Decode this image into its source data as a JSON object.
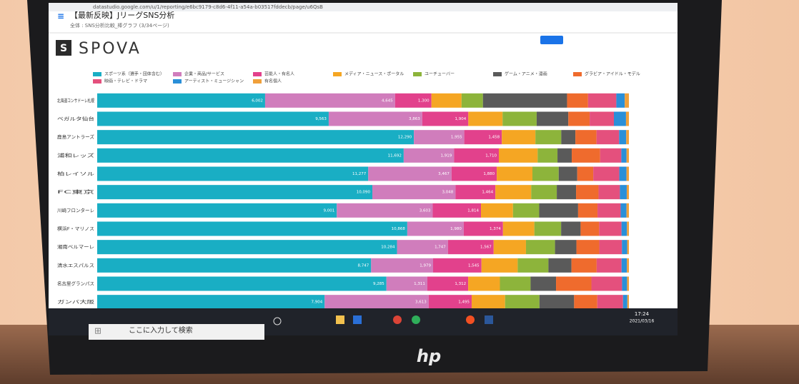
{
  "browser": {
    "url": "datastudio.google.com/u/1/reporting/e6bc9179-c8d6-4f11-a54a-b03517fddecb/page/u6QsB",
    "title": "【最新反映】JリーグSNS分析",
    "breadcrumb": "全体 : SNS分析比較_棒グラフ (3/34ページ)"
  },
  "report": {
    "logo_letter": "S",
    "logo_text": "SPOVA"
  },
  "taskbar": {
    "search": "ここに入力して検索",
    "time": "17:24",
    "date": "2021/03/16"
  },
  "brand": "hp",
  "chart_data": {
    "type": "stacked_bar_100",
    "categories": [
      "北海道コンサドーレ札幌",
      "ベガルタ仙台",
      "鹿島アントラーズ",
      "浦和レッズ",
      "柏レイソル",
      "FC東京",
      "川崎フロンターレ",
      "横浜F・マリノス",
      "湘南ベルマーレ",
      "清水エスパルス",
      "名古屋グランパス",
      "ガンバ大阪"
    ],
    "series": [
      {
        "name": "スポーツ系（選手・団体含む）",
        "color": "#19aec4",
        "values": [
          6002,
          9563,
          12290,
          11692,
          11277,
          10090,
          9001,
          10868,
          10284,
          8747,
          9285,
          7904
        ],
        "value_labels": [
          "6,002",
          "9,563",
          "12,290",
          "11,692",
          "11,277",
          "10,090",
          "9,001",
          "10,868",
          "10,284",
          "8,747",
          "9,285",
          "7,904"
        ]
      },
      {
        "name": "企業・商品/サービス",
        "color": "#d07dbc",
        "values": [
          4645,
          3863,
          1955,
          1919,
          3467,
          3048,
          3603,
          1980,
          1747,
          1979,
          1311,
          3613
        ],
        "value_labels": [
          "4,645",
          "3,863",
          "1,955",
          "1,919",
          "3,467",
          "3,048",
          "3,603",
          "1,980",
          "1,747",
          "1,979",
          "1,311",
          "3,613"
        ]
      },
      {
        "name": "芸能人・有名人",
        "color": "#e2418c",
        "values": [
          1300,
          1904,
          1458,
          1710,
          1880,
          1464,
          1814,
          1374,
          1567,
          1545,
          1312,
          1495
        ],
        "value_labels": [
          "1,300",
          "1,904",
          "1,458",
          "1,710",
          "1,880",
          "1,464",
          "1,814",
          "1,374",
          "1,567",
          "1,545",
          "1,312",
          "1,495"
        ]
      },
      {
        "name": "メディア・ニュース・ポータル",
        "color": "#f5a623",
        "values": [
          1076,
          1415,
          1303,
          1480,
          1484,
          1314,
          1202,
          1100,
          1108,
          1156,
          1018,
          1161
        ]
      },
      {
        "name": "ユーチューバー",
        "color": "#8db43b",
        "values": [
          765,
          1408,
          1003,
          757,
          1093,
          938,
          984,
          938,
          996,
          982,
          985,
          1194
        ]
      },
      {
        "name": "ゲーム・アニメ・漫画",
        "color": "#5a5a5a",
        "values": [
          3007,
          1307,
          549,
          545,
          772,
          707,
          1462,
          683,
          735,
          736,
          817,
          1205
        ]
      },
      {
        "name": "グラビア・アイドル・モデル",
        "color": "#ef6b2d",
        "values": [
          750,
          882,
          820,
          1080,
          666,
          823,
          729,
          649,
          784,
          804,
          1135,
          805
        ]
      },
      {
        "name": "映画・テレビ・ドラマ",
        "color": "#e4507d",
        "values": [
          1011,
          1001,
          877,
          810,
          1083,
          785,
          870,
          784,
          776,
          795,
          984,
          894
        ]
      },
      {
        "name": "アーティスト・ミュージシャン",
        "color": "#2a8fd8",
        "values": [
          300,
          500,
          276,
          200,
          300,
          250,
          220,
          190,
          180,
          170,
          160,
          150
        ]
      },
      {
        "name": "有名個人",
        "color": "#f0a03a",
        "values": [
          150,
          120,
          104,
          90,
          100,
          80,
          90,
          70,
          60,
          65,
          60,
          55
        ]
      }
    ]
  }
}
